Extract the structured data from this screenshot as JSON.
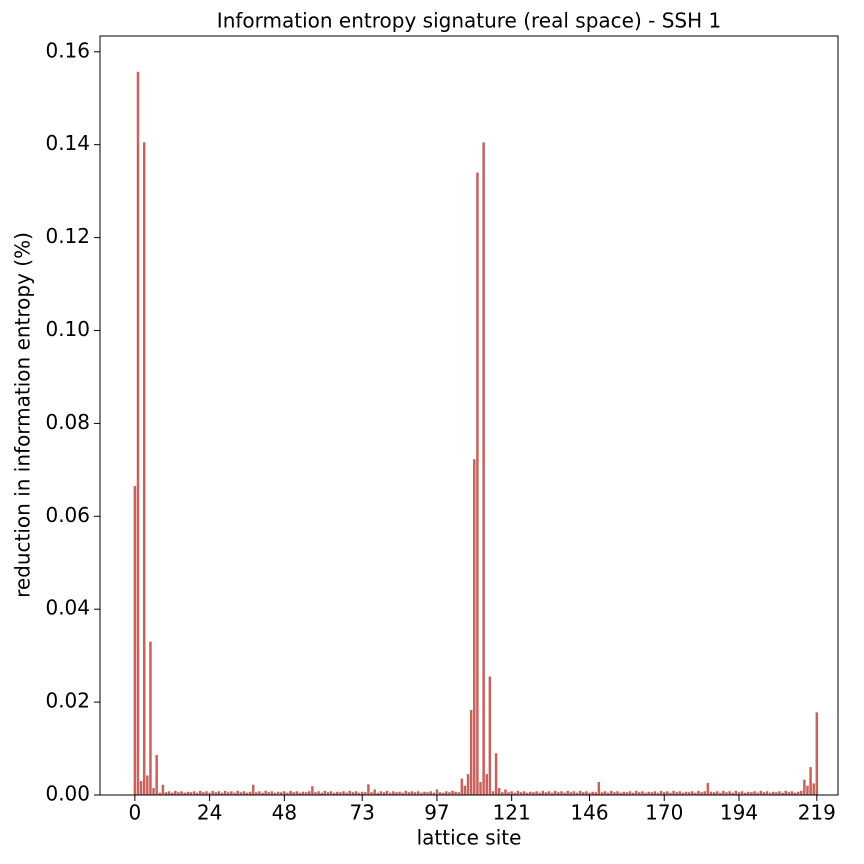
{
  "chart_data": {
    "type": "bar",
    "title": "Information entropy signature (real space) - SSH 1",
    "xlabel": "lattice site",
    "ylabel": "reduction in information entropy (%)",
    "color": "#c9605c",
    "x": [
      0,
      1,
      2,
      3,
      4,
      5,
      6,
      7,
      8,
      9,
      10,
      11,
      12,
      13,
      14,
      15,
      16,
      17,
      18,
      19,
      20,
      21,
      22,
      23,
      24,
      25,
      26,
      27,
      28,
      29,
      30,
      31,
      32,
      33,
      34,
      35,
      36,
      37,
      38,
      39,
      40,
      41,
      42,
      43,
      44,
      45,
      46,
      47,
      48,
      49,
      50,
      51,
      52,
      53,
      54,
      55,
      56,
      57,
      58,
      59,
      60,
      61,
      62,
      63,
      64,
      65,
      66,
      67,
      68,
      69,
      70,
      71,
      72,
      73,
      74,
      75,
      76,
      77,
      78,
      79,
      80,
      81,
      82,
      83,
      84,
      85,
      86,
      87,
      88,
      89,
      90,
      91,
      92,
      93,
      94,
      95,
      96,
      97,
      98,
      99,
      100,
      101,
      102,
      103,
      104,
      105,
      106,
      107,
      108,
      109,
      110,
      111,
      112,
      113,
      114,
      115,
      116,
      117,
      118,
      119,
      120,
      121,
      122,
      123,
      124,
      125,
      126,
      127,
      128,
      129,
      130,
      131,
      132,
      133,
      134,
      135,
      136,
      137,
      138,
      139,
      140,
      141,
      142,
      143,
      144,
      145,
      146,
      147,
      148,
      149,
      150,
      151,
      152,
      153,
      154,
      155,
      156,
      157,
      158,
      159,
      160,
      161,
      162,
      163,
      164,
      165,
      166,
      167,
      168,
      169,
      170,
      171,
      172,
      173,
      174,
      175,
      176,
      177,
      178,
      179,
      180,
      181,
      182,
      183,
      184,
      185,
      186,
      187,
      188,
      189,
      190,
      191,
      192,
      193,
      194,
      195,
      196,
      197,
      198,
      199,
      200,
      201,
      202,
      203,
      204,
      205,
      206,
      207,
      208,
      209,
      210,
      211,
      212,
      213,
      214,
      215,
      216,
      217,
      218,
      219
    ],
    "values": [
      0.0665,
      0.1557,
      0.003,
      0.1405,
      0.0042,
      0.033,
      0.0015,
      0.0086,
      0.0005,
      0.0022,
      0.0006,
      0.0008,
      0.0005,
      0.0009,
      0.0006,
      0.0008,
      0.0005,
      0.0007,
      0.0006,
      0.0008,
      0.0005,
      0.0009,
      0.0006,
      0.0008,
      0.0005,
      0.0009,
      0.0006,
      0.0008,
      0.0005,
      0.0009,
      0.0006,
      0.0008,
      0.0005,
      0.0009,
      0.0006,
      0.0008,
      0.0005,
      0.0007,
      0.0022,
      0.0006,
      0.0008,
      0.0005,
      0.0009,
      0.0006,
      0.0008,
      0.0005,
      0.0007,
      0.0006,
      0.0008,
      0.0005,
      0.0009,
      0.0006,
      0.0008,
      0.0005,
      0.0007,
      0.0006,
      0.0008,
      0.0019,
      0.0006,
      0.0008,
      0.0005,
      0.0009,
      0.0006,
      0.0008,
      0.0005,
      0.0007,
      0.0006,
      0.0008,
      0.0005,
      0.0009,
      0.0006,
      0.0008,
      0.0005,
      0.0007,
      0.0006,
      0.0023,
      0.0006,
      0.0012,
      0.0005,
      0.0008,
      0.0006,
      0.0009,
      0.0005,
      0.0008,
      0.0006,
      0.0007,
      0.0005,
      0.0009,
      0.0006,
      0.0008,
      0.0006,
      0.0008,
      0.0005,
      0.0007,
      0.0006,
      0.0008,
      0.0005,
      0.0012,
      0.0006,
      0.0005,
      0.0008,
      0.0006,
      0.0009,
      0.0007,
      0.0006,
      0.0035,
      0.002,
      0.0045,
      0.0183,
      0.0723,
      0.134,
      0.0028,
      0.1405,
      0.0045,
      0.0255,
      0.0008,
      0.009,
      0.0015,
      0.0006,
      0.0012,
      0.0006,
      0.0008,
      0.0005,
      0.0009,
      0.0006,
      0.0008,
      0.0005,
      0.0007,
      0.0006,
      0.0008,
      0.0005,
      0.0009,
      0.0006,
      0.0008,
      0.0005,
      0.0009,
      0.0006,
      0.0008,
      0.0005,
      0.0009,
      0.0006,
      0.0008,
      0.0005,
      0.0009,
      0.0006,
      0.0008,
      0.0005,
      0.0007,
      0.0006,
      0.0028,
      0.0006,
      0.0008,
      0.0005,
      0.0009,
      0.0006,
      0.0008,
      0.0005,
      0.0007,
      0.0006,
      0.0008,
      0.0005,
      0.0009,
      0.0006,
      0.0008,
      0.0005,
      0.0007,
      0.0006,
      0.0008,
      0.0005,
      0.0009,
      0.0006,
      0.0008,
      0.0005,
      0.0009,
      0.0006,
      0.0008,
      0.0005,
      0.0007,
      0.0006,
      0.0008,
      0.0005,
      0.0009,
      0.0006,
      0.0008,
      0.0026,
      0.0007,
      0.0006,
      0.0008,
      0.0005,
      0.0009,
      0.0006,
      0.0008,
      0.0005,
      0.0009,
      0.0006,
      0.0008,
      0.0005,
      0.0007,
      0.0006,
      0.0008,
      0.0005,
      0.0009,
      0.0006,
      0.0008,
      0.0005,
      0.0007,
      0.0006,
      0.0008,
      0.0005,
      0.0009,
      0.0006,
      0.0008,
      0.0005,
      0.0007,
      0.0009,
      0.0033,
      0.002,
      0.006,
      0.0025,
      0.0178
    ],
    "xlim": [
      -11.2,
      225.8
    ],
    "xticks": [
      0,
      24,
      48,
      73,
      97,
      121,
      146,
      170,
      194,
      219
    ],
    "ylim": [
      0,
      0.1634
    ],
    "yticks": [
      {
        "value": 0,
        "label": "0.00"
      },
      {
        "value": 0.02,
        "label": "0.02"
      },
      {
        "value": 0.04,
        "label": "0.04"
      },
      {
        "value": 0.06,
        "label": "0.06"
      },
      {
        "value": 0.08,
        "label": "0.08"
      },
      {
        "value": 0.1,
        "label": "0.10"
      },
      {
        "value": 0.12,
        "label": "0.12"
      },
      {
        "value": 0.14,
        "label": "0.14"
      },
      {
        "value": 0.16,
        "label": "0.16"
      }
    ],
    "grid": false
  }
}
